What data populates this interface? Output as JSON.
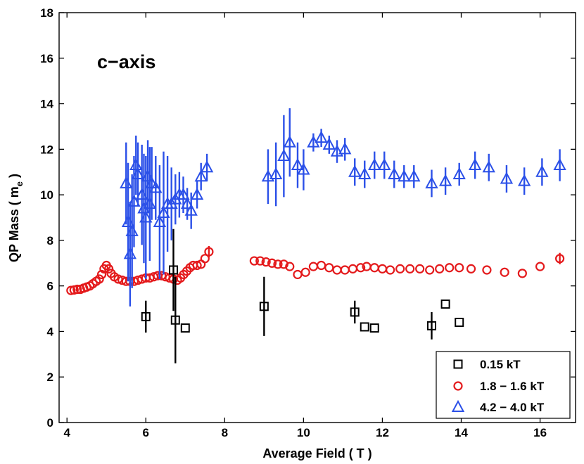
{
  "chart_data": {
    "type": "scatter",
    "title": "",
    "xlabel": "Average Field ( T )",
    "ylabel": "QP Mass ( m",
    "ylabel_sub": "e",
    "ylabel_end": " )",
    "annotation": "c−axis",
    "xlim": [
      3.8,
      16.9
    ],
    "ylim": [
      0,
      18
    ],
    "xticks": [
      4,
      6,
      8,
      10,
      12,
      14,
      16
    ],
    "yticks": [
      0,
      2,
      4,
      6,
      8,
      10,
      12,
      14,
      16,
      18
    ],
    "grid": false,
    "legend_position": "bottom-right",
    "series": [
      {
        "name": "0.15 kT",
        "marker": "square",
        "color": "#000000",
        "points": [
          {
            "x": 6.0,
            "y": 4.65,
            "err": 0.7
          },
          {
            "x": 6.7,
            "y": 6.7,
            "err": 1.8
          },
          {
            "x": 6.75,
            "y": 4.5,
            "err": 1.9
          },
          {
            "x": 7.0,
            "y": 4.15,
            "err": 0
          },
          {
            "x": 9.0,
            "y": 5.1,
            "err": 1.3
          },
          {
            "x": 11.3,
            "y": 4.85,
            "err": 0.5
          },
          {
            "x": 11.55,
            "y": 4.2,
            "err": 0
          },
          {
            "x": 11.8,
            "y": 4.15,
            "err": 0
          },
          {
            "x": 13.25,
            "y": 4.25,
            "err": 0.6
          },
          {
            "x": 13.6,
            "y": 5.2,
            "err": 0
          },
          {
            "x": 13.95,
            "y": 4.4,
            "err": 0
          }
        ]
      },
      {
        "name": "1.8 − 1.6 kT",
        "marker": "circle",
        "color": "#e41a1c",
        "points": [
          {
            "x": 4.1,
            "y": 5.8,
            "err": 0
          },
          {
            "x": 4.18,
            "y": 5.82,
            "err": 0
          },
          {
            "x": 4.26,
            "y": 5.85,
            "err": 0
          },
          {
            "x": 4.34,
            "y": 5.85,
            "err": 0
          },
          {
            "x": 4.42,
            "y": 5.9,
            "err": 0
          },
          {
            "x": 4.5,
            "y": 5.95,
            "err": 0
          },
          {
            "x": 4.58,
            "y": 6.0,
            "err": 0
          },
          {
            "x": 4.66,
            "y": 6.1,
            "err": 0
          },
          {
            "x": 4.74,
            "y": 6.2,
            "err": 0
          },
          {
            "x": 4.82,
            "y": 6.3,
            "err": 0
          },
          {
            "x": 4.88,
            "y": 6.5,
            "err": 0
          },
          {
            "x": 4.94,
            "y": 6.75,
            "err": 0
          },
          {
            "x": 5.0,
            "y": 6.9,
            "err": 0
          },
          {
            "x": 5.06,
            "y": 6.75,
            "err": 0
          },
          {
            "x": 5.12,
            "y": 6.55,
            "err": 0
          },
          {
            "x": 5.2,
            "y": 6.4,
            "err": 0
          },
          {
            "x": 5.3,
            "y": 6.3,
            "err": 0
          },
          {
            "x": 5.4,
            "y": 6.25,
            "err": 0
          },
          {
            "x": 5.5,
            "y": 6.2,
            "err": 0
          },
          {
            "x": 5.6,
            "y": 6.2,
            "err": 0
          },
          {
            "x": 5.7,
            "y": 6.2,
            "err": 0
          },
          {
            "x": 5.8,
            "y": 6.25,
            "err": 0
          },
          {
            "x": 5.9,
            "y": 6.3,
            "err": 0
          },
          {
            "x": 6.0,
            "y": 6.35,
            "err": 0
          },
          {
            "x": 6.1,
            "y": 6.35,
            "err": 0
          },
          {
            "x": 6.2,
            "y": 6.4,
            "err": 0
          },
          {
            "x": 6.3,
            "y": 6.45,
            "err": 0
          },
          {
            "x": 6.4,
            "y": 6.45,
            "err": 0
          },
          {
            "x": 6.5,
            "y": 6.4,
            "err": 0
          },
          {
            "x": 6.6,
            "y": 6.35,
            "err": 0
          },
          {
            "x": 6.7,
            "y": 6.3,
            "err": 0
          },
          {
            "x": 6.8,
            "y": 6.25,
            "err": 0
          },
          {
            "x": 6.88,
            "y": 6.35,
            "err": 0
          },
          {
            "x": 6.96,
            "y": 6.5,
            "err": 0
          },
          {
            "x": 7.04,
            "y": 6.65,
            "err": 0
          },
          {
            "x": 7.12,
            "y": 6.8,
            "err": 0
          },
          {
            "x": 7.2,
            "y": 6.9,
            "err": 0
          },
          {
            "x": 7.3,
            "y": 6.9,
            "err": 0
          },
          {
            "x": 7.4,
            "y": 6.95,
            "err": 0
          },
          {
            "x": 7.5,
            "y": 7.2,
            "err": 0
          },
          {
            "x": 7.6,
            "y": 7.5,
            "err": 0.25
          },
          {
            "x": 8.75,
            "y": 7.1,
            "err": 0
          },
          {
            "x": 8.9,
            "y": 7.1,
            "err": 0
          },
          {
            "x": 9.05,
            "y": 7.05,
            "err": 0
          },
          {
            "x": 9.2,
            "y": 7.0,
            "err": 0
          },
          {
            "x": 9.35,
            "y": 6.95,
            "err": 0
          },
          {
            "x": 9.5,
            "y": 6.95,
            "err": 0
          },
          {
            "x": 9.65,
            "y": 6.85,
            "err": 0
          },
          {
            "x": 9.85,
            "y": 6.5,
            "err": 0
          },
          {
            "x": 10.05,
            "y": 6.6,
            "err": 0
          },
          {
            "x": 10.25,
            "y": 6.85,
            "err": 0
          },
          {
            "x": 10.45,
            "y": 6.9,
            "err": 0
          },
          {
            "x": 10.65,
            "y": 6.8,
            "err": 0
          },
          {
            "x": 10.85,
            "y": 6.7,
            "err": 0
          },
          {
            "x": 11.05,
            "y": 6.7,
            "err": 0
          },
          {
            "x": 11.25,
            "y": 6.75,
            "err": 0
          },
          {
            "x": 11.45,
            "y": 6.8,
            "err": 0
          },
          {
            "x": 11.6,
            "y": 6.85,
            "err": 0
          },
          {
            "x": 11.8,
            "y": 6.8,
            "err": 0
          },
          {
            "x": 12.0,
            "y": 6.75,
            "err": 0
          },
          {
            "x": 12.2,
            "y": 6.7,
            "err": 0
          },
          {
            "x": 12.45,
            "y": 6.75,
            "err": 0
          },
          {
            "x": 12.7,
            "y": 6.75,
            "err": 0
          },
          {
            "x": 12.95,
            "y": 6.75,
            "err": 0
          },
          {
            "x": 13.2,
            "y": 6.7,
            "err": 0
          },
          {
            "x": 13.45,
            "y": 6.75,
            "err": 0
          },
          {
            "x": 13.7,
            "y": 6.8,
            "err": 0
          },
          {
            "x": 13.95,
            "y": 6.8,
            "err": 0
          },
          {
            "x": 14.25,
            "y": 6.75,
            "err": 0
          },
          {
            "x": 14.65,
            "y": 6.7,
            "err": 0
          },
          {
            "x": 15.1,
            "y": 6.6,
            "err": 0
          },
          {
            "x": 15.55,
            "y": 6.55,
            "err": 0
          },
          {
            "x": 16.0,
            "y": 6.85,
            "err": 0
          },
          {
            "x": 16.5,
            "y": 7.2,
            "err": 0.25
          }
        ]
      },
      {
        "name": "4.2 − 4.0 kT",
        "marker": "triangle",
        "color": "#2b50e8",
        "points": [
          {
            "x": 5.5,
            "y": 10.5,
            "err": 1.8
          },
          {
            "x": 5.55,
            "y": 8.8,
            "err": 2.6
          },
          {
            "x": 5.6,
            "y": 7.4,
            "err": 2.3
          },
          {
            "x": 5.65,
            "y": 8.4,
            "err": 2.5
          },
          {
            "x": 5.7,
            "y": 9.7,
            "err": 2.0
          },
          {
            "x": 5.75,
            "y": 11.3,
            "err": 1.3
          },
          {
            "x": 5.8,
            "y": 10.9,
            "err": 1.4
          },
          {
            "x": 5.9,
            "y": 10.0,
            "err": 2.2
          },
          {
            "x": 5.95,
            "y": 9.4,
            "err": 2.4
          },
          {
            "x": 6.0,
            "y": 9.0,
            "err": 2.7
          },
          {
            "x": 6.05,
            "y": 10.8,
            "err": 1.6
          },
          {
            "x": 6.1,
            "y": 9.6,
            "err": 2.5
          },
          {
            "x": 6.15,
            "y": 10.5,
            "err": 1.6
          },
          {
            "x": 6.25,
            "y": 10.3,
            "err": 1.4
          },
          {
            "x": 6.35,
            "y": 8.8,
            "err": 2.5
          },
          {
            "x": 6.45,
            "y": 9.2,
            "err": 2.7
          },
          {
            "x": 6.55,
            "y": 9.6,
            "err": 2.1
          },
          {
            "x": 6.65,
            "y": 9.6,
            "err": 1.6
          },
          {
            "x": 6.75,
            "y": 9.8,
            "err": 1.1
          },
          {
            "x": 6.85,
            "y": 10.0,
            "err": 1.0
          },
          {
            "x": 6.95,
            "y": 10.0,
            "err": 0.8
          },
          {
            "x": 7.05,
            "y": 9.6,
            "err": 0.7
          },
          {
            "x": 7.15,
            "y": 9.3,
            "err": 0.8
          },
          {
            "x": 7.3,
            "y": 10.0,
            "err": 0.6
          },
          {
            "x": 7.4,
            "y": 10.8,
            "err": 0.6
          },
          {
            "x": 7.55,
            "y": 11.2,
            "err": 0.6
          },
          {
            "x": 9.1,
            "y": 10.8,
            "err": 1.2
          },
          {
            "x": 9.3,
            "y": 10.9,
            "err": 1.4
          },
          {
            "x": 9.5,
            "y": 11.7,
            "err": 1.8
          },
          {
            "x": 9.65,
            "y": 12.3,
            "err": 1.5
          },
          {
            "x": 9.85,
            "y": 11.3,
            "err": 1.0
          },
          {
            "x": 10.0,
            "y": 11.1,
            "err": 0.9
          },
          {
            "x": 10.25,
            "y": 12.3,
            "err": 0.4
          },
          {
            "x": 10.45,
            "y": 12.5,
            "err": 0.4
          },
          {
            "x": 10.65,
            "y": 12.2,
            "err": 0.4
          },
          {
            "x": 10.85,
            "y": 11.9,
            "err": 0.5
          },
          {
            "x": 11.05,
            "y": 12.0,
            "err": 0.5
          },
          {
            "x": 11.3,
            "y": 11.0,
            "err": 0.6
          },
          {
            "x": 11.55,
            "y": 10.9,
            "err": 0.6
          },
          {
            "x": 11.8,
            "y": 11.3,
            "err": 0.6
          },
          {
            "x": 12.05,
            "y": 11.3,
            "err": 0.6
          },
          {
            "x": 12.3,
            "y": 10.9,
            "err": 0.6
          },
          {
            "x": 12.55,
            "y": 10.8,
            "err": 0.5
          },
          {
            "x": 12.8,
            "y": 10.8,
            "err": 0.5
          },
          {
            "x": 13.25,
            "y": 10.5,
            "err": 0.6
          },
          {
            "x": 13.6,
            "y": 10.6,
            "err": 0.6
          },
          {
            "x": 13.95,
            "y": 10.9,
            "err": 0.5
          },
          {
            "x": 14.35,
            "y": 11.3,
            "err": 0.6
          },
          {
            "x": 14.7,
            "y": 11.2,
            "err": 0.6
          },
          {
            "x": 15.15,
            "y": 10.7,
            "err": 0.6
          },
          {
            "x": 15.6,
            "y": 10.6,
            "err": 0.6
          },
          {
            "x": 16.05,
            "y": 11.0,
            "err": 0.6
          },
          {
            "x": 16.5,
            "y": 11.3,
            "err": 0.7
          }
        ]
      }
    ]
  }
}
